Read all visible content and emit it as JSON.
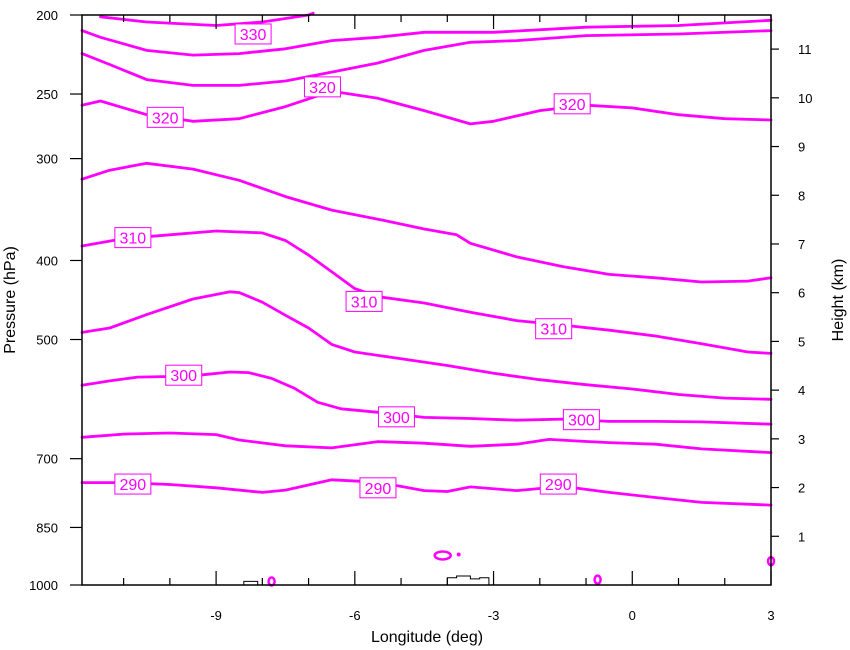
{
  "chart_data": {
    "type": "contour",
    "xlabel": "Longitude (deg)",
    "ylabel": "Pressure (hPa)",
    "y2label": "Height (km)",
    "xlim": [
      -11.9,
      3.0
    ],
    "ylim": [
      1000,
      200
    ],
    "x_ticks": [
      -9,
      -6,
      -3,
      0,
      3
    ],
    "x_tick_labels": [
      "-9",
      "-6",
      "-3",
      "0",
      "3"
    ],
    "x_minor_step": 1,
    "y_ticks": [
      1000,
      850,
      700,
      500,
      400,
      300,
      250,
      200
    ],
    "y_tick_labels": [
      "1000",
      "850",
      "700",
      "500",
      "400",
      "300",
      "250",
      "200"
    ],
    "y2_ticks": [
      1,
      2,
      3,
      4,
      5,
      6,
      7,
      8,
      9,
      10,
      11
    ],
    "y2_tick_labels": [
      "1",
      "2",
      "3",
      "4",
      "5",
      "6",
      "7",
      "8",
      "9",
      "10",
      "11"
    ],
    "contour_color": "#ff00ff",
    "terrain_color": "#000000",
    "contours": [
      {
        "level": 330,
        "points": [
          [
            -11.5,
            201
          ],
          [
            -10.5,
            204
          ],
          [
            -9,
            206
          ],
          [
            -8,
            204
          ],
          [
            -7,
            200
          ],
          [
            -6.9,
            199
          ]
        ]
      },
      {
        "level": 330,
        "points": [
          [
            -11.9,
            209
          ],
          [
            -11.5,
            213
          ],
          [
            -10.5,
            221
          ],
          [
            -9.5,
            224
          ],
          [
            -8.5,
            223
          ],
          [
            -7.5,
            220
          ],
          [
            -6.5,
            215
          ],
          [
            -5.5,
            213
          ],
          [
            -4.5,
            210
          ],
          [
            -3,
            210
          ],
          [
            -1,
            207
          ],
          [
            1,
            206
          ],
          [
            3,
            203
          ]
        ]
      },
      {
        "level": 320,
        "points": [
          [
            -11.9,
            223
          ],
          [
            -11.3,
            230
          ],
          [
            -10.5,
            240
          ],
          [
            -9.5,
            244
          ],
          [
            -8.5,
            244
          ],
          [
            -7.5,
            241
          ],
          [
            -6.5,
            235
          ],
          [
            -5.5,
            229
          ],
          [
            -4.5,
            221
          ],
          [
            -3.5,
            216
          ],
          [
            -2.5,
            215
          ],
          [
            -1,
            212
          ],
          [
            1,
            211
          ],
          [
            3,
            209
          ]
        ]
      },
      {
        "level": 320,
        "points": [
          [
            -11.9,
            258
          ],
          [
            -11.5,
            255
          ],
          [
            -10.5,
            265
          ],
          [
            -9.5,
            270
          ],
          [
            -8.5,
            268
          ],
          [
            -7.5,
            259
          ],
          [
            -6.5,
            248
          ],
          [
            -5.5,
            253
          ],
          [
            -4.5,
            262
          ],
          [
            -3.5,
            272
          ],
          [
            -3,
            270
          ],
          [
            -2,
            262
          ],
          [
            -1,
            258
          ],
          [
            0,
            260
          ],
          [
            1,
            265
          ],
          [
            2,
            268
          ],
          [
            3,
            269
          ]
        ]
      },
      {
        "level": 310,
        "points": [
          [
            -11.9,
            318
          ],
          [
            -11.3,
            310
          ],
          [
            -10.5,
            304
          ],
          [
            -9.5,
            309
          ],
          [
            -8.5,
            319
          ],
          [
            -7.5,
            334
          ],
          [
            -6.5,
            347
          ],
          [
            -5.5,
            356
          ],
          [
            -4.5,
            366
          ],
          [
            -3.8,
            372
          ],
          [
            -3.5,
            381
          ],
          [
            -2.5,
            396
          ],
          [
            -1.5,
            407
          ],
          [
            -0.5,
            416
          ],
          [
            0.5,
            420
          ],
          [
            1.5,
            425
          ],
          [
            2.5,
            424
          ],
          [
            3,
            420
          ]
        ]
      },
      {
        "level": 310,
        "points": [
          [
            -11.9,
            384
          ],
          [
            -11,
            376
          ],
          [
            -10,
            372
          ],
          [
            -9,
            368
          ],
          [
            -8,
            370
          ],
          [
            -7.5,
            378
          ],
          [
            -7,
            394
          ],
          [
            -6.5,
            413
          ],
          [
            -6,
            433
          ],
          [
            -5.5,
            443
          ],
          [
            -4.5,
            451
          ],
          [
            -3.5,
            463
          ],
          [
            -2.5,
            474
          ],
          [
            -1.5,
            480
          ],
          [
            -0.5,
            487
          ],
          [
            0.5,
            495
          ],
          [
            1.5,
            506
          ],
          [
            2.5,
            518
          ],
          [
            3,
            520
          ]
        ]
      },
      {
        "level": 310,
        "points": [
          [
            -11.9,
            490
          ],
          [
            -11.3,
            484
          ],
          [
            -10.5,
            466
          ],
          [
            -9.5,
            446
          ],
          [
            -8.7,
            437
          ],
          [
            -8.5,
            438
          ],
          [
            -8,
            450
          ],
          [
            -7.5,
            467
          ],
          [
            -7,
            484
          ],
          [
            -6.5,
            507
          ],
          [
            -6,
            518
          ],
          [
            -5,
            528
          ],
          [
            -4,
            538
          ],
          [
            -3,
            550
          ],
          [
            -2,
            560
          ],
          [
            -1,
            568
          ],
          [
            0,
            575
          ],
          [
            1,
            584
          ],
          [
            2,
            590
          ],
          [
            3,
            592
          ]
        ]
      },
      {
        "level": 300,
        "points": [
          [
            -11.9,
            569
          ],
          [
            -11.3,
            562
          ],
          [
            -10.7,
            556
          ],
          [
            -10,
            555
          ],
          [
            -9.5,
            554
          ],
          [
            -8.7,
            548
          ],
          [
            -8.3,
            549
          ],
          [
            -7.8,
            558
          ],
          [
            -7.3,
            574
          ],
          [
            -6.8,
            597
          ],
          [
            -6.3,
            608
          ],
          [
            -5.5,
            614
          ],
          [
            -4.5,
            623
          ],
          [
            -3.5,
            625
          ],
          [
            -2.5,
            628
          ],
          [
            -1.5,
            626
          ],
          [
            -0.5,
            630
          ],
          [
            0.5,
            630
          ],
          [
            1.5,
            631
          ],
          [
            3,
            635
          ]
        ]
      },
      {
        "level": 300,
        "points": [
          [
            -11.9,
            659
          ],
          [
            -11,
            653
          ],
          [
            -10,
            651
          ],
          [
            -9,
            654
          ],
          [
            -8.5,
            664
          ],
          [
            -7.5,
            675
          ],
          [
            -6.5,
            679
          ],
          [
            -5.5,
            667
          ],
          [
            -4.5,
            670
          ],
          [
            -3.5,
            676
          ],
          [
            -2.5,
            672
          ],
          [
            -1.8,
            663
          ],
          [
            -1.2,
            666
          ],
          [
            -0.5,
            669
          ],
          [
            0.5,
            672
          ],
          [
            1.5,
            681
          ],
          [
            3,
            688
          ]
        ]
      },
      {
        "level": 290,
        "points": [
          [
            -11.9,
            749
          ],
          [
            -11,
            749
          ],
          [
            -10,
            753
          ],
          [
            -9,
            760
          ],
          [
            -8,
            770
          ],
          [
            -7.5,
            765
          ],
          [
            -6.5,
            743
          ],
          [
            -5.5,
            748
          ],
          [
            -4.5,
            766
          ],
          [
            -4,
            768
          ],
          [
            -3.5,
            758
          ],
          [
            -2.5,
            766
          ],
          [
            -1.5,
            757
          ],
          [
            -0.5,
            770
          ],
          [
            0.5,
            781
          ],
          [
            1.5,
            792
          ],
          [
            3,
            798
          ]
        ]
      }
    ],
    "contour_labels": [
      {
        "text": "330",
        "x": -8.2,
        "y": 211
      },
      {
        "text": "320",
        "x": -6.7,
        "y": 245
      },
      {
        "text": "320",
        "x": -10.1,
        "y": 267
      },
      {
        "text": "320",
        "x": -1.3,
        "y": 257
      },
      {
        "text": "310",
        "x": -10.8,
        "y": 375
      },
      {
        "text": "310",
        "x": -5.8,
        "y": 449
      },
      {
        "text": "310",
        "x": -1.7,
        "y": 485
      },
      {
        "text": "300",
        "x": -9.7,
        "y": 553
      },
      {
        "text": "300",
        "x": -5.1,
        "y": 622
      },
      {
        "text": "300",
        "x": -1.1,
        "y": 627
      },
      {
        "text": "290",
        "x": -10.8,
        "y": 752
      },
      {
        "text": "290",
        "x": -5.5,
        "y": 760
      },
      {
        "text": "290",
        "x": -1.6,
        "y": 752
      }
    ],
    "small_loops": [
      {
        "x": -4.1,
        "y": 920
      },
      {
        "x": -7.8,
        "y": 990
      },
      {
        "x": -0.75,
        "y": 985
      },
      {
        "x": 3.0,
        "y": 935
      }
    ],
    "terrain": [
      [
        [
          -8.4,
          1000
        ],
        [
          -8.4,
          990
        ],
        [
          -8.1,
          990
        ],
        [
          -8.1,
          1000
        ]
      ],
      [
        [
          -4.0,
          1000
        ],
        [
          -4.0,
          980
        ],
        [
          -3.8,
          980
        ],
        [
          -3.8,
          975
        ],
        [
          -3.5,
          975
        ],
        [
          -3.5,
          983
        ],
        [
          -3.3,
          983
        ],
        [
          -3.3,
          980
        ],
        [
          -3.1,
          980
        ],
        [
          -3.1,
          1000
        ]
      ]
    ]
  }
}
